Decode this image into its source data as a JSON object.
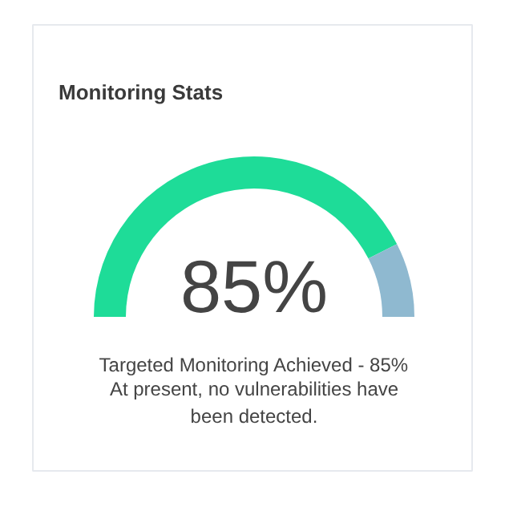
{
  "chart_data": {
    "type": "donut",
    "title": "Monitoring Stats",
    "categories": [
      null,
      null
    ],
    "values": [
      85,
      15
    ],
    "colors": [
      "#1edc98",
      "#8fb9d0"
    ],
    "value_labels": [
      "85%",
      null
    ],
    "annotations": [
      "Targeted Monitoring Achieved - 85%",
      "At present, no vulnerabilities have been detected."
    ]
  }
}
